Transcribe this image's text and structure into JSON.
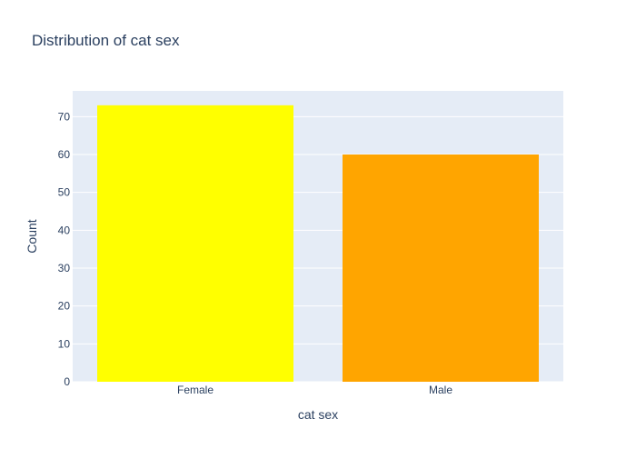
{
  "chart_data": {
    "type": "bar",
    "title": "Distribution of cat sex",
    "xlabel": "cat sex",
    "ylabel": "Count",
    "categories": [
      "Female",
      "Male"
    ],
    "values": [
      73,
      60
    ],
    "bar_colors": [
      "#ffff00",
      "#ffa500"
    ],
    "ylim": [
      0,
      76.8
    ],
    "yticks": [
      0,
      10,
      20,
      30,
      40,
      50,
      60,
      70
    ],
    "grid": true,
    "legend": "none",
    "plot_background": "#e5ecf6",
    "gridline_color": "#ffffff",
    "text_color": "#2a3f5f"
  }
}
